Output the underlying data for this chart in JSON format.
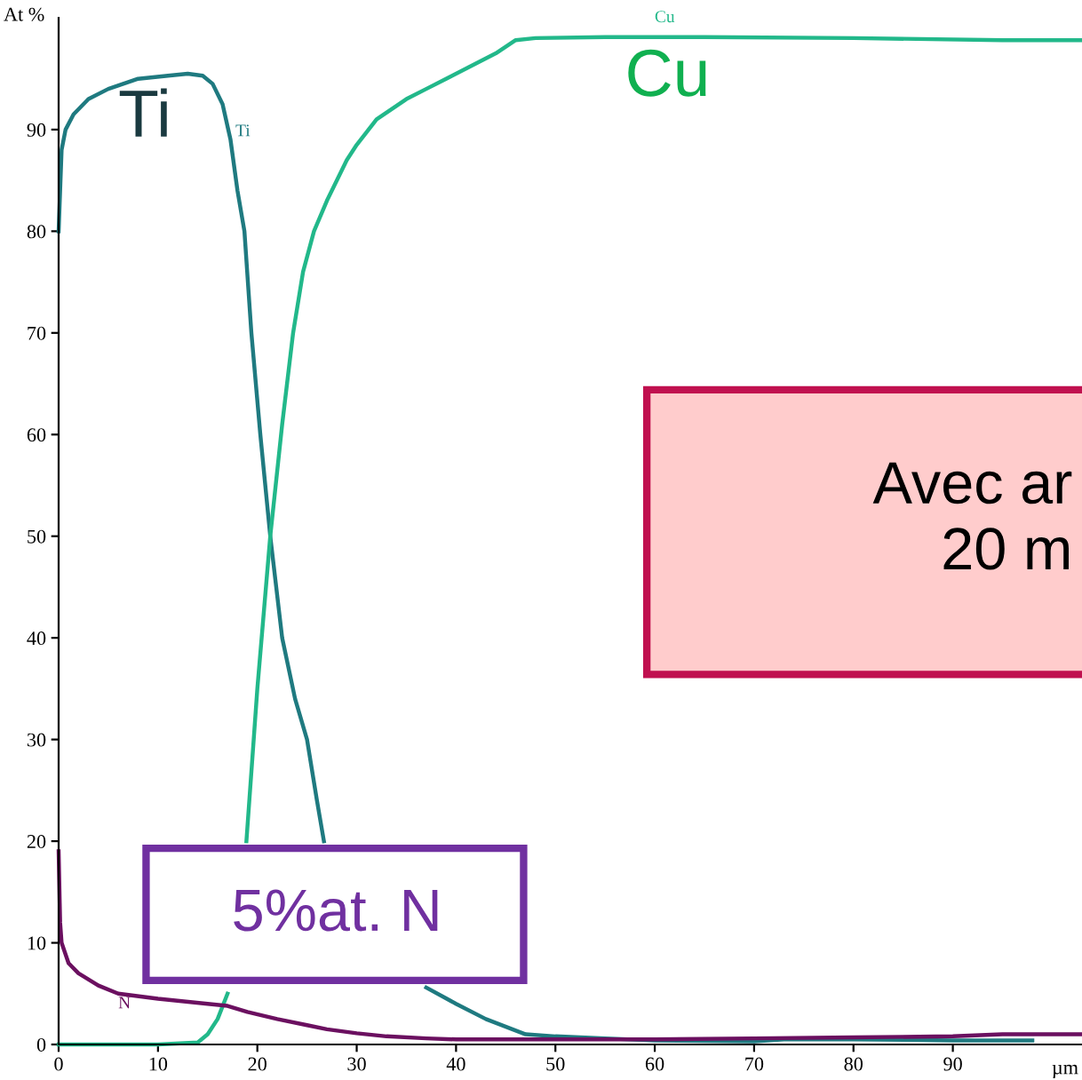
{
  "chart_data": {
    "type": "line",
    "xlabel": "µm",
    "ylabel": "At %",
    "xlim": [
      0,
      103
    ],
    "ylim": [
      0,
      101
    ],
    "xticks": [
      0,
      10,
      20,
      30,
      40,
      50,
      60,
      70,
      80,
      90
    ],
    "yticks": [
      0,
      10,
      20,
      30,
      40,
      50,
      60,
      70,
      80,
      90
    ],
    "grid": false,
    "legend": false,
    "marker": "none",
    "line_style": "solid",
    "series": [
      {
        "name": "Ti",
        "color": "#1f7a80",
        "x": [
          0,
          0.3,
          0.7,
          1.5,
          3,
          5,
          8,
          11,
          13,
          14.5,
          15.5,
          16.5,
          17.3,
          18,
          18.7,
          19.4,
          20.3,
          21.3,
          22.5,
          23.8,
          25,
          26,
          26.7,
          28,
          30,
          33,
          35,
          37,
          40,
          43,
          47,
          50,
          55,
          60,
          70,
          73,
          80,
          90,
          98
        ],
        "values": [
          80,
          88,
          90,
          91.5,
          93,
          94,
          95,
          95.3,
          95.5,
          95.3,
          94.5,
          92.5,
          89,
          84,
          80,
          70,
          60,
          50,
          40,
          34,
          30,
          24,
          20,
          null,
          null,
          null,
          null,
          5.6,
          4,
          2.5,
          1,
          0.8,
          0.6,
          0.4,
          0.3,
          0.5,
          0.5,
          0.4,
          0.4
        ]
      },
      {
        "name": "Cu",
        "color": "#22b88a",
        "x": [
          0,
          10,
          14,
          15,
          16,
          17,
          18,
          18.9,
          20,
          21.3,
          22.5,
          23.6,
          24.6,
          25.7,
          27,
          29,
          30,
          32,
          35,
          37,
          39,
          42,
          44,
          46,
          48,
          55,
          65,
          80,
          95,
          103
        ],
        "values": [
          0,
          0,
          0.2,
          1,
          2.5,
          5,
          null,
          20,
          35,
          50,
          61,
          70,
          76,
          80,
          83,
          87,
          88.5,
          91,
          93,
          94,
          95,
          96.5,
          97.5,
          98.8,
          99,
          99.1,
          99.1,
          99,
          98.8,
          98.8
        ]
      },
      {
        "name": "N",
        "color": "#6b1060",
        "x": [
          0,
          0.15,
          0.3,
          1,
          2,
          4,
          6,
          10,
          15,
          17,
          19,
          22,
          25,
          27,
          30,
          33,
          37,
          40,
          50,
          60,
          70,
          80,
          90,
          95,
          103
        ],
        "values": [
          19,
          12,
          10,
          8,
          7,
          5.8,
          5,
          4.5,
          4,
          3.8,
          3.2,
          2.5,
          1.9,
          1.5,
          1.1,
          0.8,
          0.6,
          0.5,
          0.5,
          0.5,
          0.6,
          0.7,
          0.8,
          1,
          1
        ]
      }
    ],
    "annotations": [
      "Ti",
      "Cu",
      "5%at. N",
      "Avec ar\n20 m"
    ]
  }
}
